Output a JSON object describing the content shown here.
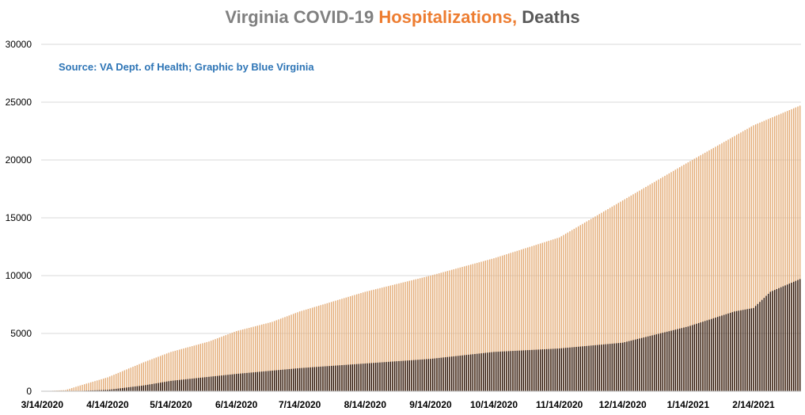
{
  "chart_data": {
    "type": "bar",
    "title_parts": [
      "Virginia COVID-19 ",
      "Hospitalizations,",
      " Deaths"
    ],
    "source": "Source: VA Dept. of Health; Graphic by Blue Virginia",
    "ylim": [
      0,
      30000
    ],
    "y_ticks": [
      0,
      5000,
      10000,
      15000,
      20000,
      25000,
      30000
    ],
    "x_tick_labels": [
      "3/14/2020",
      "4/14/2020",
      "5/14/2020",
      "6/14/2020",
      "7/14/2020",
      "8/14/2020",
      "9/14/2020",
      "10/14/2020",
      "11/14/2020",
      "12/14/2020",
      "1/14/2021",
      "2/14/2021"
    ],
    "x_range": [
      "3/14/2020",
      "3/8/2021"
    ],
    "grid": true,
    "colors": {
      "hospitalizations": "#E4AD79",
      "deaths": "#2B1408",
      "title_grey": "#808080",
      "title_orange": "#ED7D31",
      "title_dark": "#595959",
      "source": "#2E75B6",
      "grid": "#D9D9D9"
    },
    "series": [
      {
        "name": "Hospitalizations",
        "key_points": [
          {
            "date": "3/14/2020",
            "value": 0
          },
          {
            "date": "3/25/2020",
            "value": 100
          },
          {
            "date": "4/1/2020",
            "value": 500
          },
          {
            "date": "4/14/2020",
            "value": 1200
          },
          {
            "date": "5/1/2020",
            "value": 2500
          },
          {
            "date": "5/14/2020",
            "value": 3400
          },
          {
            "date": "6/1/2020",
            "value": 4300
          },
          {
            "date": "6/14/2020",
            "value": 5200
          },
          {
            "date": "7/1/2020",
            "value": 6000
          },
          {
            "date": "7/14/2020",
            "value": 6900
          },
          {
            "date": "8/14/2020",
            "value": 8600
          },
          {
            "date": "9/14/2020",
            "value": 10000
          },
          {
            "date": "10/14/2020",
            "value": 11500
          },
          {
            "date": "11/14/2020",
            "value": 13300
          },
          {
            "date": "12/14/2020",
            "value": 16500
          },
          {
            "date": "1/14/2021",
            "value": 19800
          },
          {
            "date": "2/14/2021",
            "value": 23000
          },
          {
            "date": "3/8/2021",
            "value": 24700
          }
        ]
      },
      {
        "name": "Deaths",
        "key_points": [
          {
            "date": "3/14/2020",
            "value": 0
          },
          {
            "date": "4/1/2020",
            "value": 30
          },
          {
            "date": "4/14/2020",
            "value": 120
          },
          {
            "date": "5/1/2020",
            "value": 500
          },
          {
            "date": "5/14/2020",
            "value": 900
          },
          {
            "date": "6/14/2020",
            "value": 1500
          },
          {
            "date": "7/14/2020",
            "value": 2000
          },
          {
            "date": "8/14/2020",
            "value": 2400
          },
          {
            "date": "9/14/2020",
            "value": 2800
          },
          {
            "date": "10/14/2020",
            "value": 3400
          },
          {
            "date": "11/14/2020",
            "value": 3700
          },
          {
            "date": "12/14/2020",
            "value": 4200
          },
          {
            "date": "1/14/2021",
            "value": 5600
          },
          {
            "date": "2/5/2021",
            "value": 6900
          },
          {
            "date": "2/14/2021",
            "value": 7200
          },
          {
            "date": "2/22/2021",
            "value": 8600
          },
          {
            "date": "3/8/2021",
            "value": 9700
          }
        ]
      }
    ]
  }
}
